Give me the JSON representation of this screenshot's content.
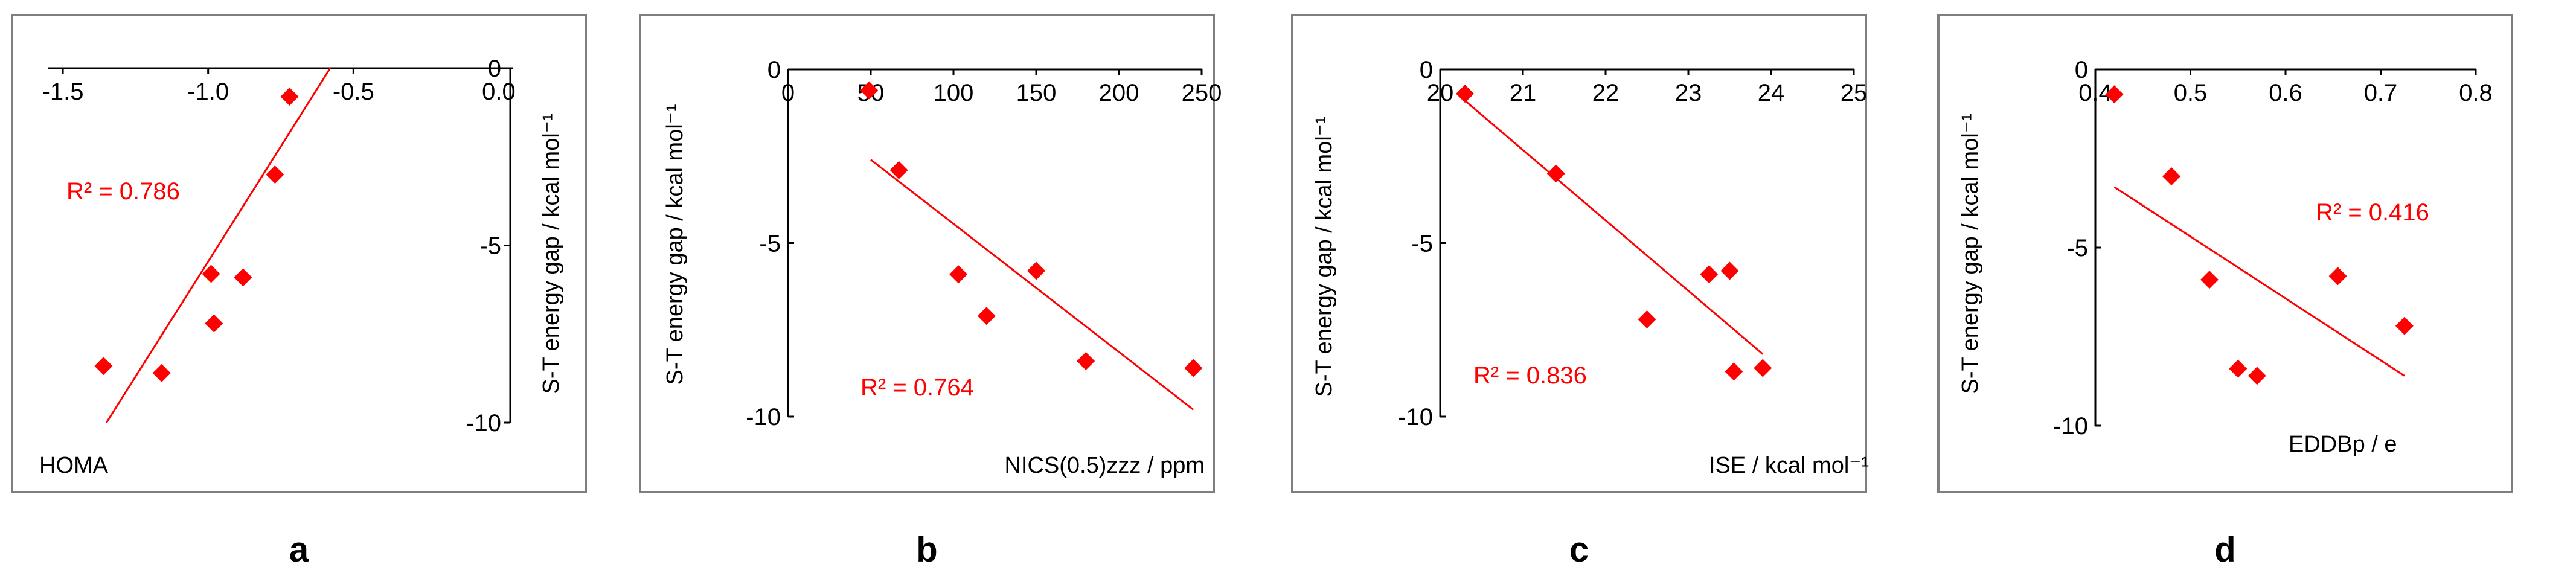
{
  "colors": {
    "marker": "#ff0000",
    "fit_line": "#ff0000",
    "axis": "#000000",
    "r2_text": "#ff0000",
    "frame": "#7f7f7f"
  },
  "chart_data": [
    {
      "panel": "a",
      "type": "scatter",
      "xlabel": "HOMA",
      "ylabel": "S-T energy gap / kcal mol⁻¹",
      "xlim": [
        -1.55,
        0.05
      ],
      "ylim": [
        -10,
        0
      ],
      "xticks": [
        -1.5,
        -1.0,
        -0.5,
        0.0
      ],
      "xtick_labels": [
        "-1.5",
        "-1.0",
        "-0.5",
        "0.0"
      ],
      "yticks": [
        0,
        -5,
        -10
      ],
      "ytick_labels": [
        "0",
        "-5",
        "-10"
      ],
      "x_axis_position": "top",
      "y_axis_position": "right",
      "r2": "R² = 0.786",
      "points": [
        {
          "x": -0.72,
          "y": -0.8
        },
        {
          "x": -0.77,
          "y": -3.0
        },
        {
          "x": -0.99,
          "y": -5.8
        },
        {
          "x": -0.88,
          "y": -5.9
        },
        {
          "x": -0.98,
          "y": -7.2
        },
        {
          "x": -1.36,
          "y": -8.4
        },
        {
          "x": -1.16,
          "y": -8.6
        }
      ],
      "fit": {
        "x": [
          -1.35,
          -0.58
        ],
        "y": [
          -10.0,
          0.0
        ]
      }
    },
    {
      "panel": "b",
      "type": "scatter",
      "xlabel": "NICS(0.5)zzz / ppm",
      "ylabel": "S-T energy gap / kcal mol⁻¹",
      "xlim": [
        0,
        250
      ],
      "ylim": [
        -10,
        0
      ],
      "xticks": [
        0,
        50,
        100,
        150,
        200,
        250
      ],
      "xtick_labels": [
        "0",
        "50",
        "100",
        "150",
        "200",
        "250"
      ],
      "yticks": [
        0,
        -5,
        -10
      ],
      "ytick_labels": [
        "0",
        "-5",
        "-10"
      ],
      "x_axis_position": "top",
      "y_axis_position": "left",
      "r2": "R² = 0.764",
      "points": [
        {
          "x": 49,
          "y": -0.6
        },
        {
          "x": 67,
          "y": -2.9
        },
        {
          "x": 103,
          "y": -5.9
        },
        {
          "x": 150,
          "y": -5.8
        },
        {
          "x": 120,
          "y": -7.1
        },
        {
          "x": 180,
          "y": -8.4
        },
        {
          "x": 245,
          "y": -8.6
        }
      ],
      "fit": {
        "x": [
          50,
          245
        ],
        "y": [
          -2.6,
          -9.8
        ]
      }
    },
    {
      "panel": "c",
      "type": "scatter",
      "xlabel": "ISE / kcal mol⁻¹",
      "ylabel": "S-T energy gap / kcal mol⁻¹",
      "xlim": [
        20,
        25
      ],
      "ylim": [
        -10,
        0
      ],
      "xticks": [
        20,
        21,
        22,
        23,
        24,
        25
      ],
      "xtick_labels": [
        "20",
        "21",
        "22",
        "23",
        "24",
        "25"
      ],
      "yticks": [
        0,
        -5,
        -10
      ],
      "ytick_labels": [
        "0",
        "-5",
        "-10"
      ],
      "x_axis_position": "top",
      "y_axis_position": "left",
      "r2": "R² = 0.836",
      "points": [
        {
          "x": 20.3,
          "y": -0.7
        },
        {
          "x": 21.4,
          "y": -3.0
        },
        {
          "x": 23.25,
          "y": -5.9
        },
        {
          "x": 23.5,
          "y": -5.8
        },
        {
          "x": 22.5,
          "y": -7.2
        },
        {
          "x": 23.9,
          "y": -8.6
        },
        {
          "x": 23.55,
          "y": -8.7
        }
      ],
      "fit": {
        "x": [
          20.3,
          23.9
        ],
        "y": [
          -0.9,
          -8.2
        ]
      }
    },
    {
      "panel": "d",
      "type": "scatter",
      "xlabel": "EDDBp / e",
      "ylabel": "S-T energy gap / kcal mol⁻¹",
      "xlim": [
        0.4,
        0.8
      ],
      "ylim": [
        -10,
        0
      ],
      "xticks": [
        0.4,
        0.5,
        0.6,
        0.7,
        0.8
      ],
      "xtick_labels": [
        "0.4",
        "0.5",
        "0.6",
        "0.7",
        "0.8"
      ],
      "yticks": [
        0,
        -5,
        -10
      ],
      "ytick_labels": [
        "0",
        "-5",
        "-10"
      ],
      "x_axis_position": "top",
      "y_axis_position": "left",
      "r2": "R² = 0.416",
      "points": [
        {
          "x": 0.42,
          "y": -0.7
        },
        {
          "x": 0.48,
          "y": -3.0
        },
        {
          "x": 0.52,
          "y": -5.9
        },
        {
          "x": 0.655,
          "y": -5.8
        },
        {
          "x": 0.725,
          "y": -7.2
        },
        {
          "x": 0.55,
          "y": -8.4
        },
        {
          "x": 0.57,
          "y": -8.6
        }
      ],
      "fit": {
        "x": [
          0.42,
          0.725
        ],
        "y": [
          -3.3,
          -8.6
        ]
      }
    }
  ]
}
